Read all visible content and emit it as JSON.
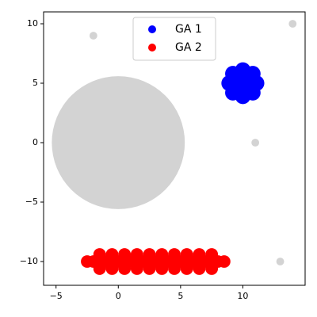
{
  "chart_data": {
    "type": "scatter",
    "xlim": [
      -6,
      15
    ],
    "ylim": [
      -12,
      11
    ],
    "xticks": [
      {
        "value": -5,
        "label": "−5"
      },
      0,
      5,
      10
    ],
    "yticks": [
      {
        "value": -10,
        "label": "−10"
      },
      {
        "value": -5,
        "label": "−5"
      },
      0,
      5,
      10
    ],
    "legend": "upper center",
    "series": [
      {
        "color": "#d3d3d3",
        "x": [
          0,
          -2,
          14,
          11,
          13
        ],
        "y": [
          0,
          9,
          10,
          0,
          -10
        ],
        "sizes": [
          14600,
          50,
          50,
          50,
          50
        ]
      },
      {
        "name": "GA 1",
        "color": "#0000ff",
        "size": 200,
        "x": [
          10,
          11.1,
          10.8,
          10,
          9.2,
          8.9,
          9.2,
          10,
          10.8
        ],
        "y": [
          5,
          5,
          5.8,
          6.1,
          5.8,
          5,
          4.2,
          3.9,
          4.2
        ]
      },
      {
        "name": "GA 2",
        "color": "#ff0000",
        "size": 130,
        "x": [
          -2.5,
          -2,
          -1.5,
          -1,
          -0.5,
          0,
          0.5,
          1,
          1.5,
          2,
          2.5,
          3,
          3.5,
          4,
          4.5,
          5,
          5.5,
          6,
          6.5,
          7,
          7.5,
          8,
          8.5,
          -1.5,
          -0.5,
          0.5,
          1.5,
          2.5,
          3.5,
          4.5,
          5.5,
          6.5,
          7.5,
          -1.5,
          -0.5,
          0.5,
          1.5,
          2.5,
          3.5,
          4.5,
          5.5,
          6.5,
          7.5
        ],
        "y": [
          -10,
          -10,
          -10,
          -10,
          -10,
          -10,
          -10,
          -10,
          -10,
          -10,
          -10,
          -10,
          -10,
          -10,
          -10,
          -10,
          -10,
          -10,
          -10,
          -10,
          -10,
          -10,
          -10,
          -9.4,
          -9.4,
          -9.4,
          -9.4,
          -9.4,
          -9.4,
          -9.4,
          -9.4,
          -9.4,
          -9.4,
          -10.6,
          -10.6,
          -10.6,
          -10.6,
          -10.6,
          -10.6,
          -10.6,
          -10.6,
          -10.6,
          -10.6
        ]
      }
    ]
  }
}
